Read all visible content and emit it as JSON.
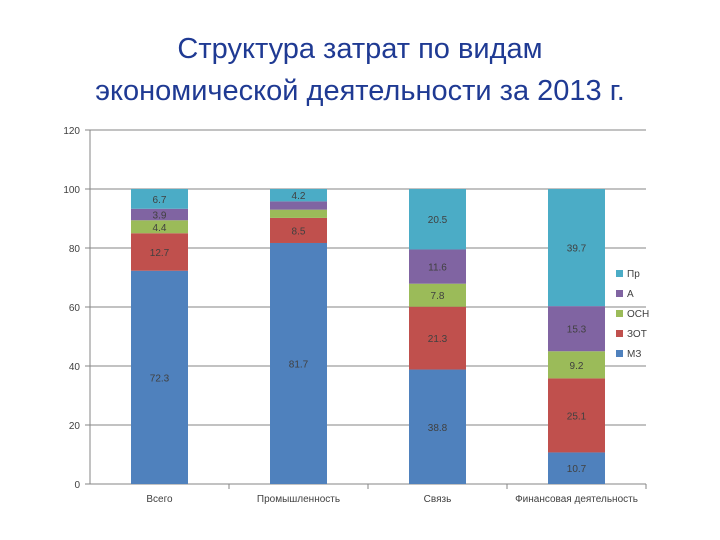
{
  "title_line1": "Структура затрат по видам",
  "title_line2": "экономической деятельности за 2013 г.",
  "chart_data": {
    "type": "bar",
    "stacked": true,
    "categories": [
      "Всего",
      "Промышленность",
      "Связь",
      "Финансовая деятельность"
    ],
    "series": [
      {
        "name": "МЗ",
        "color": "#4f81bd",
        "values": [
          72.3,
          81.7,
          38.8,
          10.7
        ],
        "labels": [
          "72.3",
          "81.7",
          "38.8",
          "10.7"
        ]
      },
      {
        "name": "ЗОТ",
        "color": "#c0504d",
        "values": [
          12.7,
          8.5,
          21.3,
          25.1
        ],
        "labels": [
          "12.7",
          "8.5",
          "21.3",
          "25.1"
        ]
      },
      {
        "name": "ОСН",
        "color": "#9bbb59",
        "values": [
          4.4,
          2.8,
          7.8,
          9.2
        ],
        "labels": [
          "4.4",
          "",
          "7.8",
          "9.2"
        ]
      },
      {
        "name": "А",
        "color": "#8064a2",
        "values": [
          3.9,
          2.8,
          11.6,
          15.3
        ],
        "labels": [
          "3.9",
          "",
          "11.6",
          "15.3"
        ]
      },
      {
        "name": "Пр",
        "color": "#4bacc6",
        "values": [
          6.7,
          4.2,
          20.5,
          39.7
        ],
        "labels": [
          "6.7",
          "4.2",
          "20.5",
          "39.7"
        ]
      }
    ],
    "ylim": [
      0,
      120
    ],
    "yticks": [
      "0",
      "20",
      "40",
      "60",
      "80",
      "100",
      "120"
    ],
    "grid": true,
    "legend": "right"
  }
}
